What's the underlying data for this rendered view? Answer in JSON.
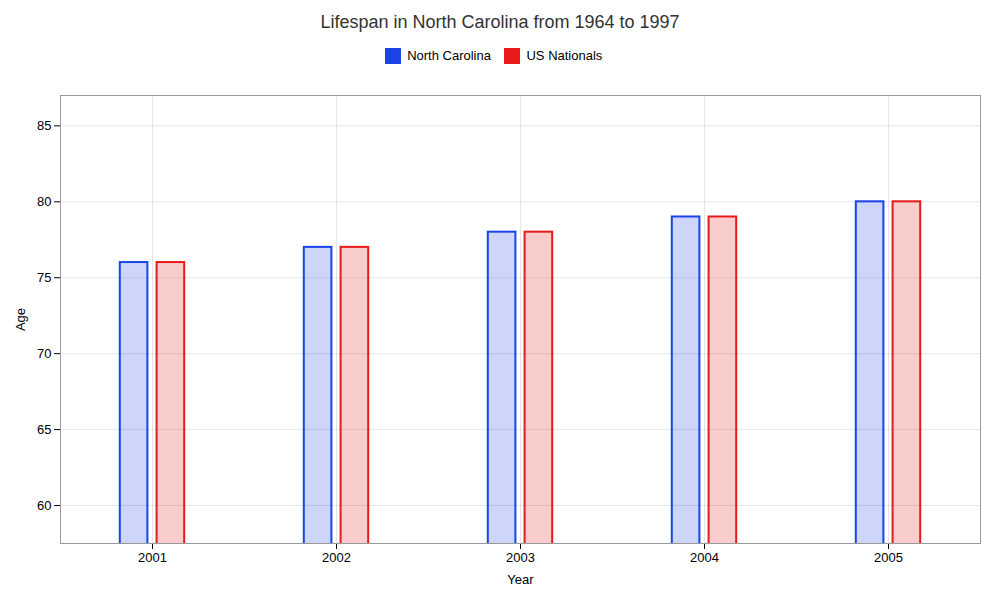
{
  "chart_data": {
    "type": "bar",
    "title": "Lifespan in North Carolina from 1964 to 1997",
    "x_label": "Year",
    "y_label": "Age",
    "categories": [
      "2001",
      "2002",
      "2003",
      "2004",
      "2005"
    ],
    "series": [
      {
        "name": "North Carolina",
        "color": "#1a44e8",
        "values": [
          76,
          77,
          78,
          79,
          80
        ]
      },
      {
        "name": "US Nationals",
        "color": "#e81a1a",
        "values": [
          76,
          77,
          78,
          79,
          80
        ]
      }
    ],
    "ylim": [
      57.5,
      87
    ],
    "yticks": [
      60,
      65,
      70,
      75,
      80,
      85
    ],
    "grid": true,
    "legend": "top"
  }
}
